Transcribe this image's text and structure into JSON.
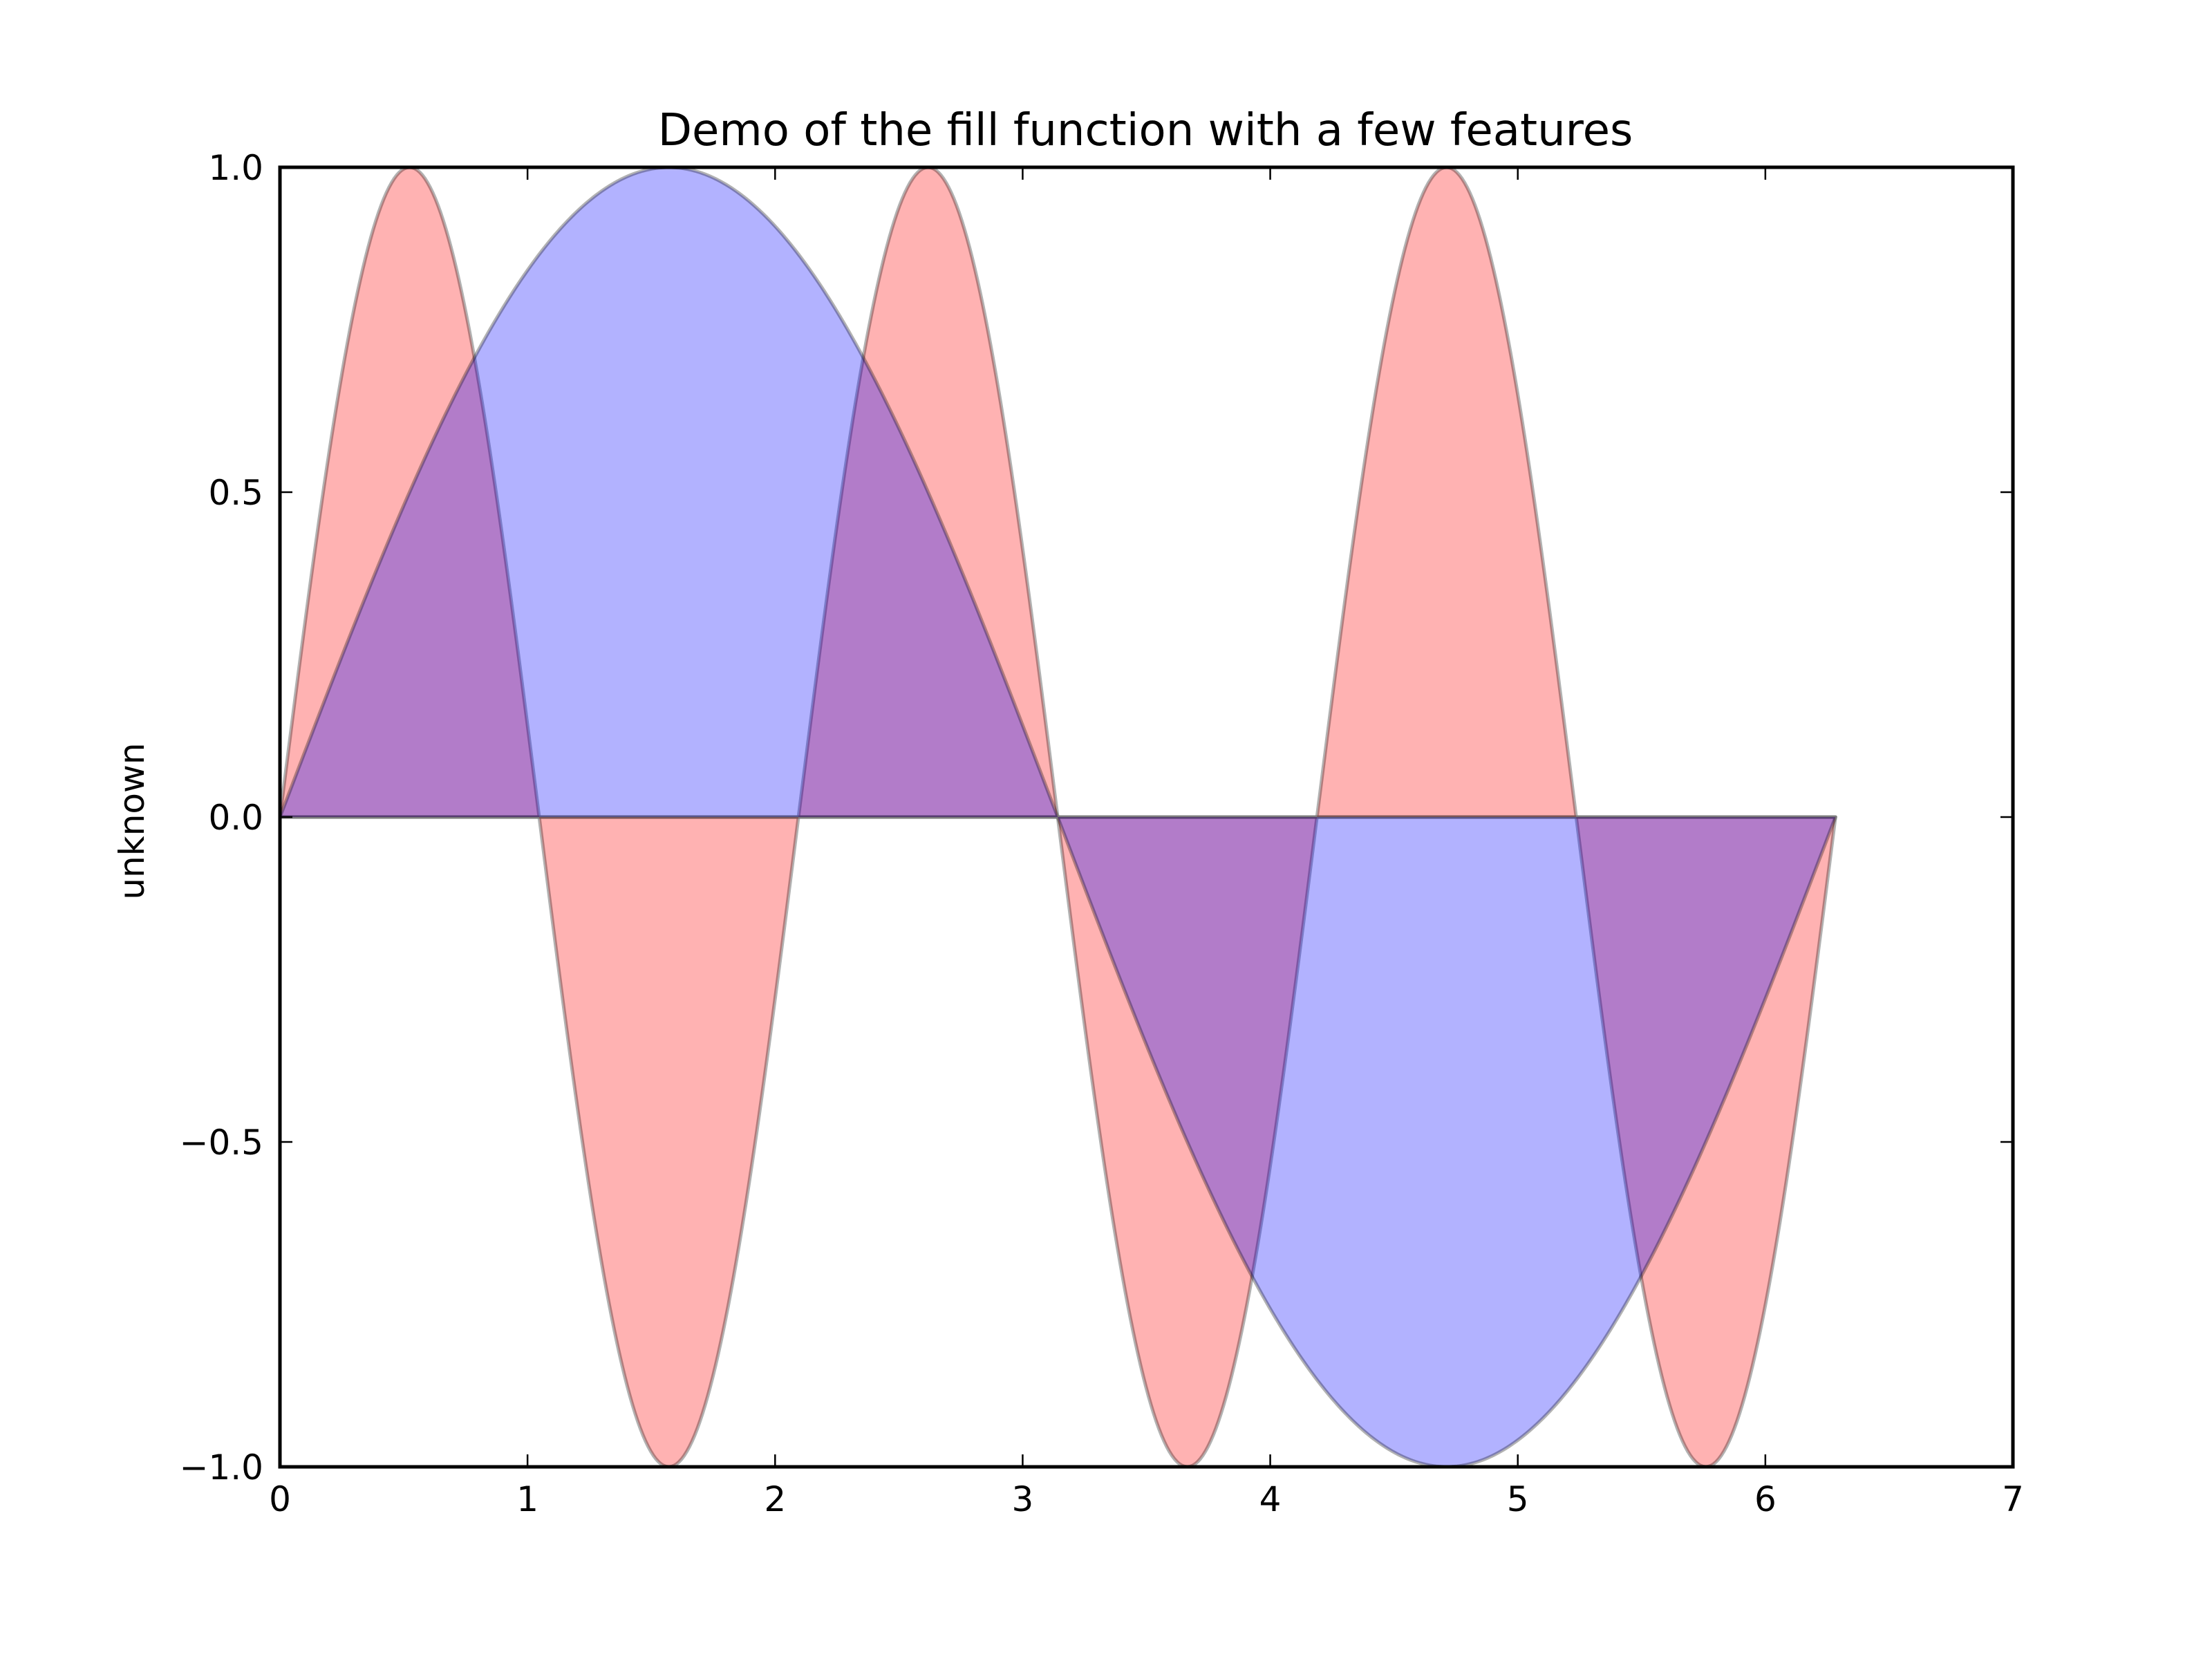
{
  "chart_data": {
    "type": "area",
    "title": "Demo of the fill function with a few features",
    "xlabel": "",
    "ylabel": "unknown",
    "xlim": [
      0,
      7
    ],
    "ylim": [
      -1.0,
      1.0
    ],
    "x_ticks": [
      "0",
      "1",
      "2",
      "3",
      "4",
      "5",
      "6",
      "7"
    ],
    "y_ticks": [
      "−1.0",
      "−0.5",
      "0.0",
      "0.5",
      "1.0"
    ],
    "grid": false,
    "legend": "none",
    "x_range": [
      0,
      6.2832
    ],
    "series": [
      {
        "function": "sin(3x)",
        "fill_color": "#ff0000",
        "edge_color": "#000000",
        "alpha": 0.3
      },
      {
        "function": "sin(x)",
        "fill_color": "#0000ff",
        "edge_color": "#000000",
        "alpha": 0.3
      }
    ]
  }
}
